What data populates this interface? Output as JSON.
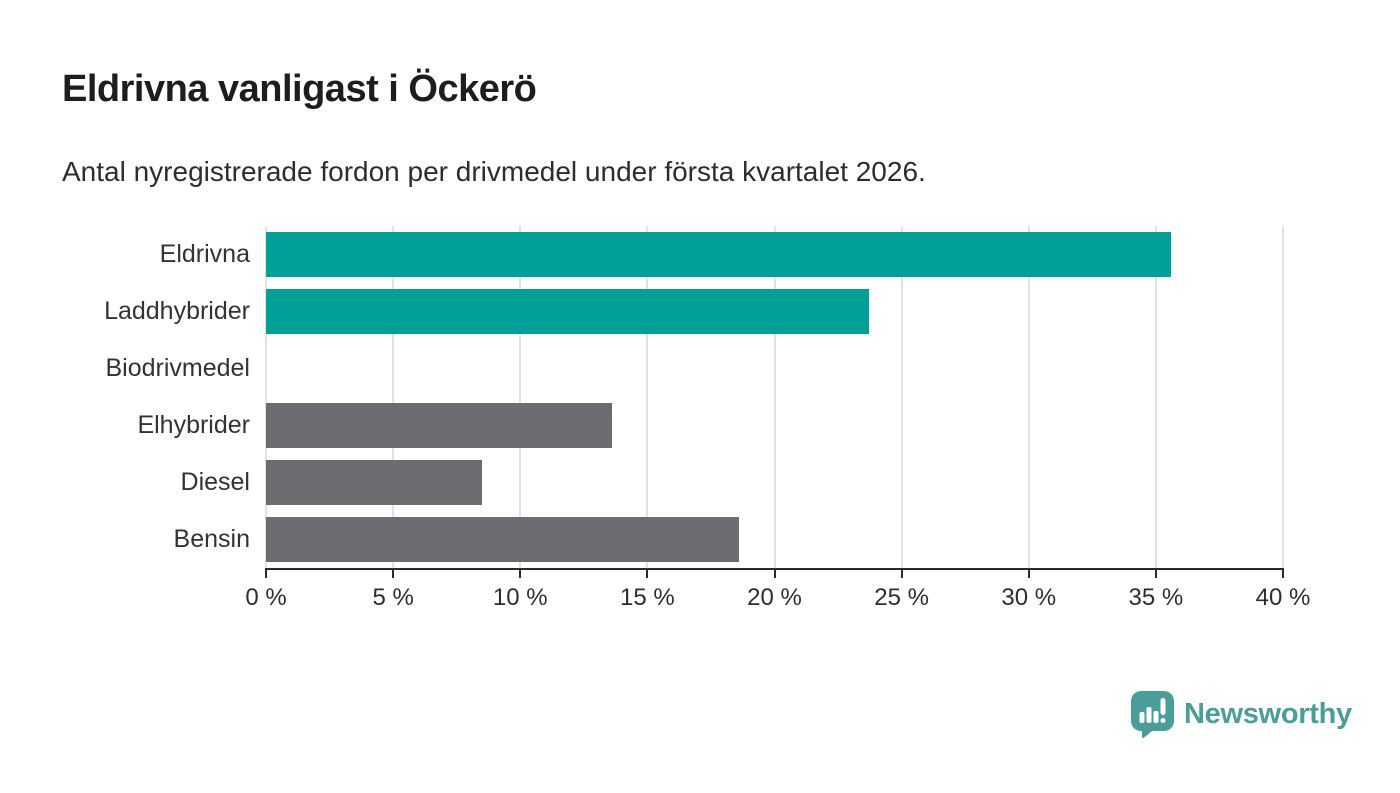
{
  "chart": {
    "title": "Eldrivna vanligast i Öckerö",
    "subtitle": "Antal nyregistrerade fordon per drivmedel under första kvartalet 2026."
  },
  "chart_data": {
    "type": "bar",
    "orientation": "horizontal",
    "title": "Eldrivna vanligast i Öckerö",
    "subtitle": "Antal nyregistrerade fordon per drivmedel under första kvartalet 2026.",
    "categories": [
      "Eldrivna",
      "Laddhybrider",
      "Biodrivmedel",
      "Elhybrider",
      "Diesel",
      "Bensin"
    ],
    "values": [
      35.6,
      23.7,
      0,
      13.6,
      8.5,
      18.6
    ],
    "unit": "%",
    "xlim": [
      0,
      40
    ],
    "xticks": [
      0,
      5,
      10,
      15,
      20,
      25,
      30,
      35,
      40
    ],
    "xtick_labels": [
      "0 %",
      "5 %",
      "10 %",
      "15 %",
      "20 %",
      "25 %",
      "30 %",
      "35 %",
      "40 %"
    ],
    "bar_colors": [
      "#00a099",
      "#00a099",
      "#6c6b70",
      "#6c6b70",
      "#6c6b70",
      "#6c6b70"
    ],
    "highlight_color": "#00a099",
    "default_color": "#6c6b70",
    "gridline_color": "#e2e2e2",
    "grid": true,
    "legend": false
  },
  "footer": {
    "logo_text": "Newsworthy",
    "logo_color": "#4b9d99"
  }
}
